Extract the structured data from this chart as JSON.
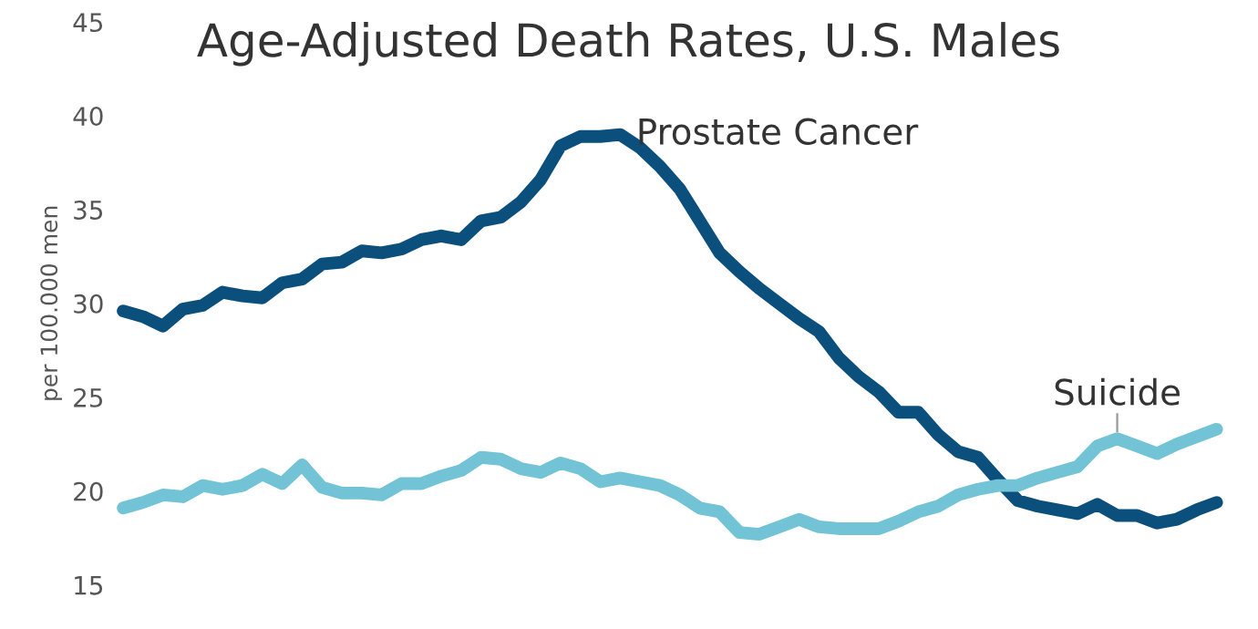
{
  "chart_data": {
    "type": "line",
    "title": "Age-Adjusted Death Rates, U.S. Males",
    "ylabel": "per 100.000 men",
    "categories": [
      null,
      null,
      null,
      null,
      null,
      null,
      null,
      null,
      null,
      null,
      null,
      null,
      null,
      null,
      null,
      null,
      null,
      null,
      null,
      null,
      null,
      null,
      null,
      null,
      null,
      null,
      null,
      null,
      null,
      null,
      null,
      null,
      null,
      null,
      null,
      null,
      null,
      null,
      null,
      null,
      null,
      null,
      null,
      null,
      null,
      null,
      null,
      null,
      null,
      null,
      null,
      null,
      null,
      null,
      null,
      null
    ],
    "series": [
      {
        "name": "Prostate Cancer",
        "color": "#0b4f7c",
        "values": [
          29.6,
          29.3,
          28.8,
          29.7,
          29.9,
          30.6,
          30.4,
          30.3,
          31.1,
          31.3,
          32.1,
          32.2,
          32.8,
          32.7,
          32.9,
          33.4,
          33.6,
          33.4,
          34.4,
          34.6,
          35.4,
          36.6,
          38.4,
          38.9,
          38.9,
          39.0,
          38.3,
          37.3,
          36.1,
          34.4,
          32.7,
          31.7,
          30.8,
          30.0,
          29.2,
          28.5,
          27.1,
          26.1,
          25.3,
          24.2,
          24.2,
          23.0,
          22.1,
          21.8,
          20.6,
          19.5,
          19.2,
          19.0,
          18.8,
          19.3,
          18.7,
          18.7,
          18.3,
          18.5,
          19.0,
          19.4
        ]
      },
      {
        "name": "Suicide",
        "color": "#72c3d5",
        "values": [
          19.1,
          19.4,
          19.8,
          19.7,
          20.3,
          20.1,
          20.3,
          20.9,
          20.4,
          21.4,
          20.2,
          19.9,
          19.9,
          19.8,
          20.4,
          20.4,
          20.8,
          21.1,
          21.8,
          21.7,
          21.2,
          21.0,
          21.5,
          21.2,
          20.5,
          20.7,
          20.5,
          20.3,
          19.8,
          19.1,
          18.9,
          17.8,
          17.7,
          18.1,
          18.5,
          18.1,
          18.0,
          18.0,
          18.0,
          18.4,
          18.9,
          19.2,
          19.8,
          20.1,
          20.3,
          20.3,
          20.7,
          21.0,
          21.3,
          22.4,
          22.8,
          22.4,
          22.0,
          22.5,
          22.9,
          23.3
        ]
      }
    ],
    "ylim": [
      15,
      45
    ],
    "yticks": [
      15,
      20,
      25,
      30,
      35,
      40,
      45
    ],
    "grid": false,
    "legend": false,
    "marker": "none",
    "line_style": "solid"
  }
}
